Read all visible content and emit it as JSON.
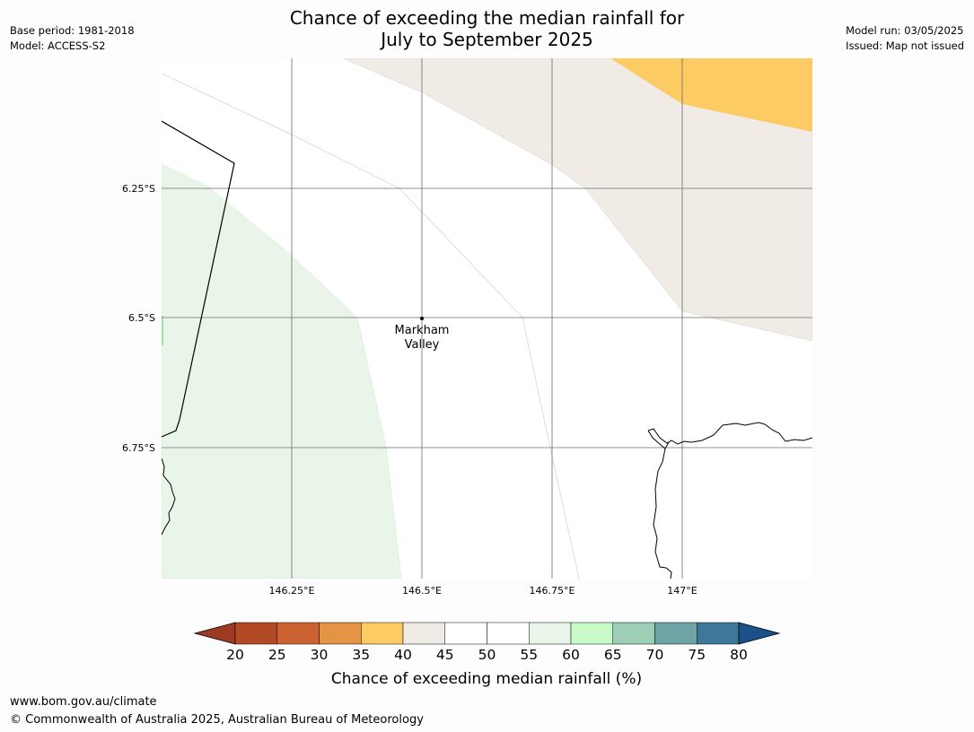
{
  "header": {
    "title_line1": "Chance of exceeding the median rainfall for",
    "title_line2": "July to September 2025",
    "base_period": "Base period: 1981-2018",
    "model": "Model: ACCESS-S2",
    "model_run": "Model run: 03/05/2025",
    "issued": "Issued: Map not issued"
  },
  "map": {
    "lat_ticks": [
      "6.25°S",
      "6.5°S",
      "6.75°S"
    ],
    "lon_ticks": [
      "146.25°E",
      "146.5°E",
      "146.75°E",
      "147°E"
    ],
    "place": {
      "name_line1": "Markham",
      "name_line2": "Valley"
    },
    "category_colors": {
      "35-40": "#fdcb63",
      "40-45": "#f0ebe5",
      "45-55": "#ffffff",
      "55-60": "#e9f5e9"
    }
  },
  "colorbar": {
    "ticks": [
      "20",
      "25",
      "30",
      "35",
      "40",
      "45",
      "50",
      "55",
      "60",
      "65",
      "70",
      "75",
      "80"
    ],
    "colors": [
      "#9e3a24",
      "#b34a26",
      "#cc6231",
      "#e39444",
      "#fdcb63",
      "#f0ebe5",
      "#ffffff",
      "#ffffff",
      "#e9f5e9",
      "#c9fbc9",
      "#9ccfb5",
      "#6fa5a6",
      "#3e7899",
      "#1c5088"
    ],
    "label": "Chance of exceeding median rainfall (%)"
  },
  "footer": {
    "url": "www.bom.gov.au/climate",
    "copyright": "© Commonwealth of Australia 2025, Australian Bureau of Meteorology"
  }
}
